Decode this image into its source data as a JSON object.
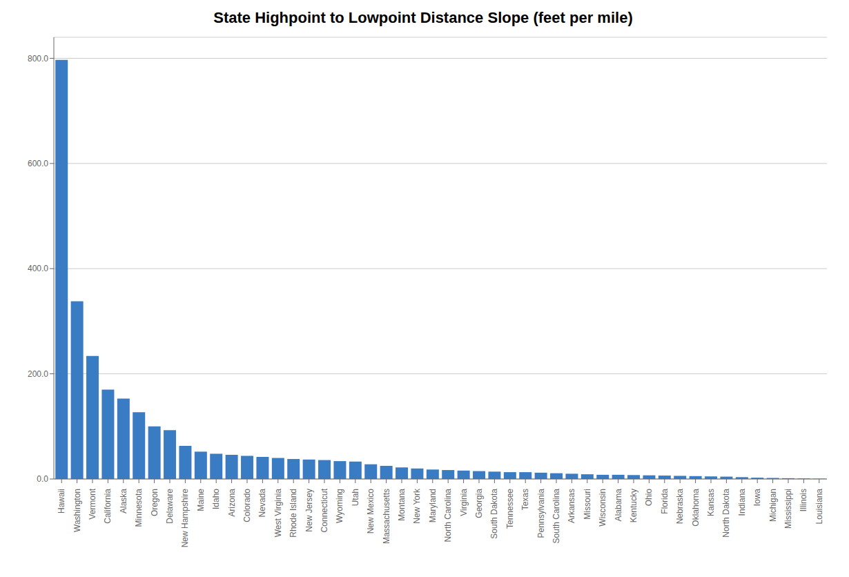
{
  "chart_data": {
    "type": "bar",
    "title": "State Highpoint to Lowpoint Distance Slope (feet per mile)",
    "categories": [
      "Hawaii",
      "Washington",
      "Vermont",
      "California",
      "Alaska",
      "Minnesota",
      "Oregon",
      "Delaware",
      "New Hampshire",
      "Maine",
      "Idaho",
      "Arizona",
      "Colorado",
      "Nevada",
      "West Virginia",
      "Rhode Island",
      "New Jersey",
      "Connecticut",
      "Wyoming",
      "Utah",
      "New Mexico",
      "Massachusetts",
      "Montana",
      "New York",
      "Maryland",
      "North Carolina",
      "Virginia",
      "Georgia",
      "South Dakota",
      "Tennessee",
      "Texas",
      "Pennsylvania",
      "South Carolina",
      "Arkansas",
      "Missouri",
      "Wisconsin",
      "Alabama",
      "Kentucky",
      "Ohio",
      "Florida",
      "Nebraska",
      "Oklahoma",
      "Kansas",
      "North Dakota",
      "Indiana",
      "Iowa",
      "Michigan",
      "Mississippi",
      "Illinois",
      "Louisiana"
    ],
    "values": [
      797.0,
      338.0,
      234.0,
      170.0,
      153.0,
      127.0,
      100.0,
      93.0,
      63.0,
      52.0,
      48.0,
      46.0,
      44.0,
      42.0,
      40.0,
      38.0,
      37.0,
      36.0,
      34.0,
      33.0,
      28.0,
      25.0,
      22.0,
      20.0,
      18.0,
      17.0,
      16.0,
      15.0,
      14.0,
      13.0,
      13.0,
      12.0,
      11.0,
      10.0,
      9.0,
      8.0,
      8.0,
      7.5,
      7.0,
      6.5,
      6.0,
      5.5,
      5.0,
      4.5,
      3.5,
      2.5,
      2.0,
      1.5,
      1.0,
      0.5
    ],
    "color": "#3A7CC3",
    "ylim": [
      0,
      840
    ],
    "yticks": [
      {
        "value": 0,
        "label": "0.0"
      },
      {
        "value": 200,
        "label": "200.0"
      },
      {
        "value": 400,
        "label": "400.0"
      },
      {
        "value": 600,
        "label": "600.0"
      },
      {
        "value": 800,
        "label": "800.0"
      }
    ],
    "grid": true
  }
}
